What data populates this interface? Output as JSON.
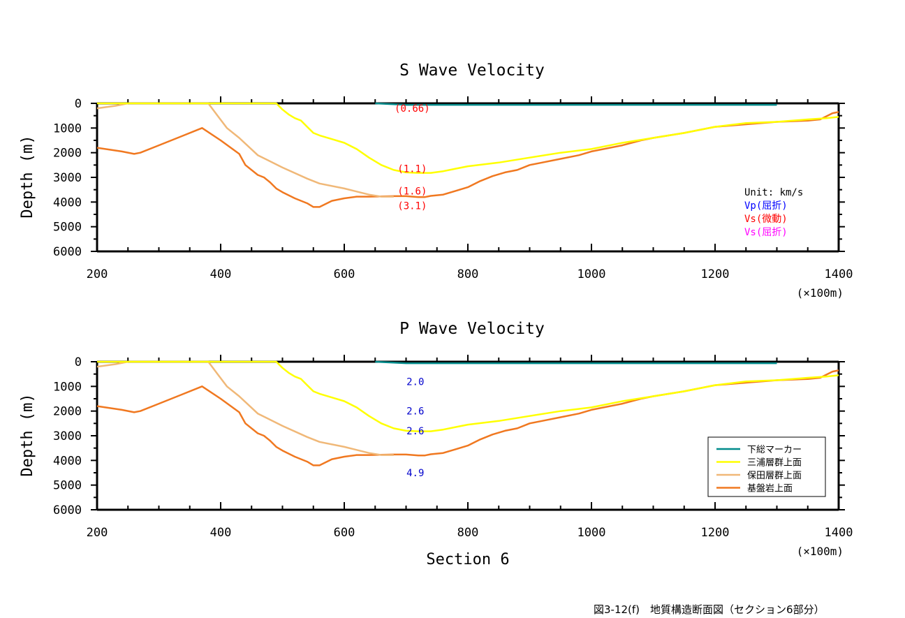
{
  "chart_data": [
    {
      "type": "line",
      "title": "S Wave Velocity",
      "ylabel": "Depth (m)",
      "xlabel": "",
      "x_unit": "(×100m)",
      "xlim": [
        200,
        1400
      ],
      "ylim": [
        0,
        6000
      ],
      "y_inverted": true,
      "x_ticks": [
        "200",
        "400",
        "600",
        "800",
        "1000",
        "1200",
        "1400"
      ],
      "y_ticks": [
        "0",
        "1000",
        "2000",
        "3000",
        "4000",
        "5000",
        "6000"
      ],
      "grid": false,
      "unit_note": "Unit: km/s",
      "velocity_legend": [
        {
          "label": "Vp(屈折)",
          "color": "#0000ff"
        },
        {
          "label": "Vs(微動)",
          "color": "#ff0000"
        },
        {
          "label": "Vs(屈折)",
          "color": "#ff00ff"
        }
      ],
      "annotations": [
        {
          "text": "(0.66)",
          "x": 710,
          "y": 200,
          "color": "#ff0000"
        },
        {
          "text": "(1.1)",
          "x": 710,
          "y": 2650,
          "color": "#ff0000"
        },
        {
          "text": "(1.6)",
          "x": 710,
          "y": 3550,
          "color": "#ff0000"
        },
        {
          "text": "(3.1)",
          "x": 710,
          "y": 4150,
          "color": "#ff0000"
        }
      ]
    },
    {
      "type": "line",
      "title": "P Wave Velocity",
      "ylabel": "Depth (m)",
      "xlabel": "Section 6",
      "x_unit": "(×100m)",
      "xlim": [
        200,
        1400
      ],
      "ylim": [
        0,
        6000
      ],
      "y_inverted": true,
      "x_ticks": [
        "200",
        "400",
        "600",
        "800",
        "1000",
        "1200",
        "1400"
      ],
      "y_ticks": [
        "0",
        "1000",
        "2000",
        "3000",
        "4000",
        "5000",
        "6000"
      ],
      "grid": false,
      "legend_placement": "bottom-right",
      "annotations": [
        {
          "text": "2.0",
          "x": 715,
          "y": 800,
          "color": "#0000cc"
        },
        {
          "text": "2.6",
          "x": 715,
          "y": 2000,
          "color": "#0000cc"
        },
        {
          "text": "2.6",
          "x": 715,
          "y": 2800,
          "color": "#0000cc"
        },
        {
          "text": "4.9",
          "x": 715,
          "y": 4500,
          "color": "#0000cc"
        }
      ]
    }
  ],
  "series": [
    {
      "name": "下総マーカー",
      "color": "#008b8b",
      "x": [
        650,
        700,
        800,
        900,
        1000,
        1100,
        1200,
        1300
      ],
      "y": [
        0,
        60,
        60,
        60,
        60,
        60,
        60,
        60
      ]
    },
    {
      "name": "三浦層群上面",
      "color": "#ffff00",
      "x": [
        200,
        250,
        300,
        350,
        400,
        450,
        490,
        500,
        510,
        520,
        530,
        540,
        550,
        560,
        580,
        600,
        620,
        640,
        660,
        680,
        700,
        720,
        740,
        760,
        780,
        800,
        850,
        900,
        950,
        1000,
        1050,
        1100,
        1150,
        1200,
        1250,
        1300,
        1350,
        1380,
        1400
      ],
      "y": [
        0,
        0,
        0,
        0,
        0,
        0,
        0,
        250,
        450,
        600,
        700,
        950,
        1200,
        1300,
        1450,
        1600,
        1850,
        2200,
        2500,
        2700,
        2800,
        2820,
        2820,
        2750,
        2650,
        2550,
        2400,
        2200,
        2000,
        1850,
        1600,
        1400,
        1200,
        950,
        800,
        750,
        650,
        600,
        550
      ]
    },
    {
      "name": "保田層群上面",
      "color": "#f0b878",
      "x": [
        200,
        230,
        250,
        300,
        350,
        380,
        395,
        410,
        430,
        460,
        500,
        540,
        560,
        600,
        640,
        660,
        680
      ],
      "y": [
        200,
        100,
        0,
        0,
        0,
        0,
        500,
        1000,
        1400,
        2100,
        2600,
        3050,
        3250,
        3450,
        3700,
        3780,
        3780
      ]
    },
    {
      "name": "基盤岩上面",
      "color": "#f07820",
      "x": [
        200,
        240,
        260,
        270,
        300,
        330,
        370,
        400,
        430,
        440,
        460,
        470,
        480,
        490,
        500,
        520,
        540,
        550,
        560,
        580,
        600,
        620,
        640,
        660,
        680,
        700,
        720,
        730,
        740,
        760,
        780,
        800,
        820,
        840,
        860,
        880,
        900,
        920,
        950,
        980,
        1000,
        1050,
        1080,
        1100,
        1150,
        1200,
        1250,
        1300,
        1350,
        1370,
        1390,
        1400
      ],
      "y": [
        1800,
        1950,
        2050,
        2000,
        1700,
        1400,
        1000,
        1500,
        2050,
        2500,
        2900,
        3000,
        3200,
        3450,
        3600,
        3850,
        4050,
        4200,
        4200,
        3950,
        3850,
        3780,
        3780,
        3770,
        3760,
        3760,
        3800,
        3800,
        3750,
        3700,
        3550,
        3400,
        3150,
        2950,
        2800,
        2700,
        2500,
        2400,
        2250,
        2100,
        1950,
        1700,
        1500,
        1400,
        1200,
        950,
        850,
        750,
        700,
        650,
        400,
        350
      ]
    }
  ],
  "caption": "図3-12(f)　地質構造断面図（セクション6部分）"
}
